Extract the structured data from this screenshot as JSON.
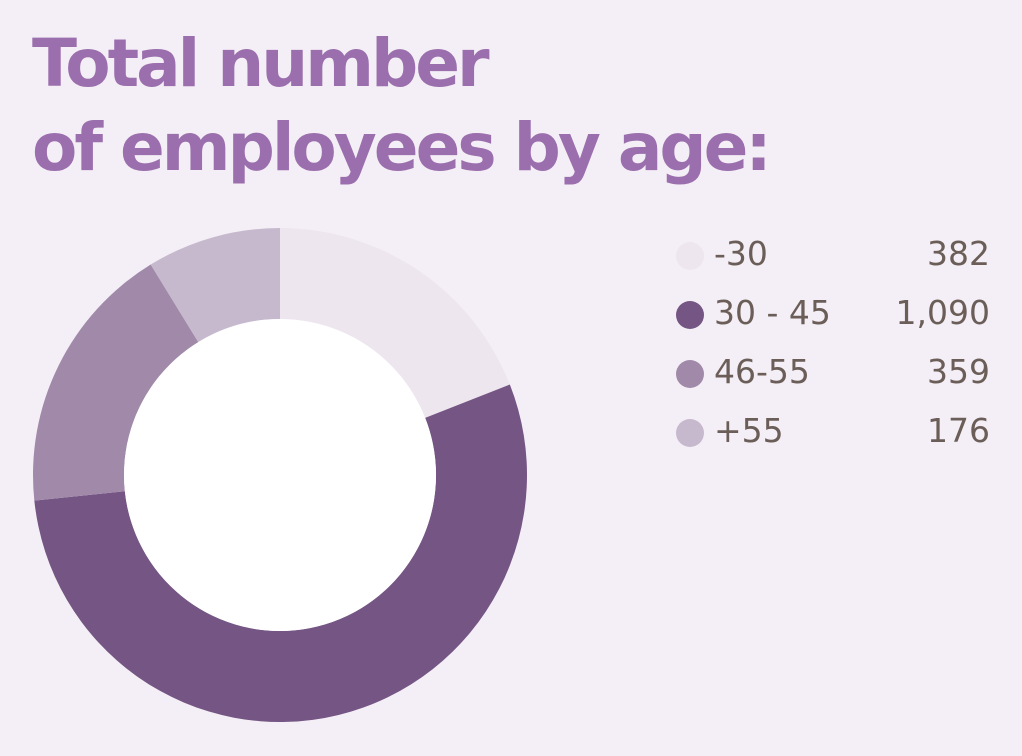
{
  "title": {
    "line1": "Total number",
    "line2": "of employees by age:"
  },
  "colors": {
    "background": "#f4eff6",
    "title": "#9b6fad",
    "text": "#6b5e58",
    "hole": "#ffffff"
  },
  "chart_data": {
    "type": "pie",
    "variant": "donut",
    "categories": [
      "-30",
      "30 - 45",
      "46-55",
      "+55"
    ],
    "values": [
      382,
      1090,
      359,
      176
    ],
    "value_labels": [
      "382",
      "1,090",
      "359",
      "176"
    ],
    "colors": [
      "#ede6ef",
      "#745583",
      "#a18aa9",
      "#c6b9cd"
    ],
    "legend_position": "right",
    "title": "Total number of employees by age:"
  }
}
